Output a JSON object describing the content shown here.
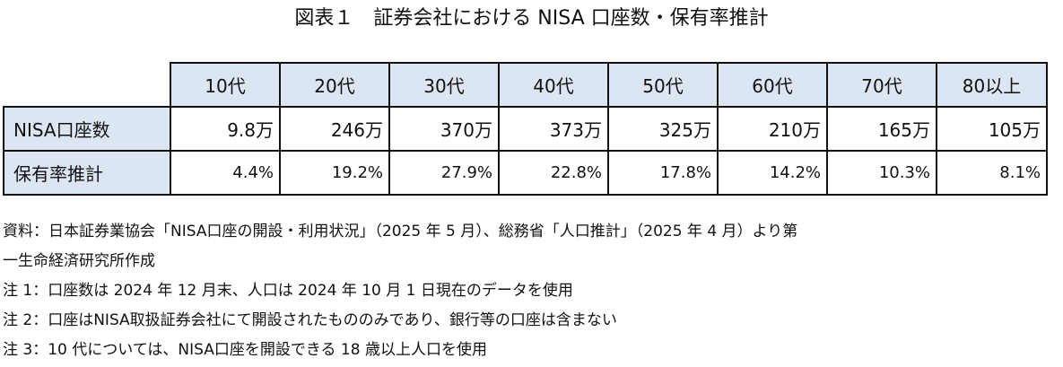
{
  "title": "図表１　証券会社における NISA 口座数・保有率推計",
  "table": {
    "columns": [
      "10代",
      "20代",
      "30代",
      "40代",
      "50代",
      "60代",
      "70代",
      "80以上"
    ],
    "rows": [
      {
        "label": "NISA口座数",
        "values": [
          "9.8万",
          "246万",
          "370万",
          "373万",
          "325万",
          "210万",
          "165万",
          "105万"
        ]
      },
      {
        "label": "保有率推計",
        "values": [
          "4.4%",
          "19.2%",
          "27.9%",
          "22.8%",
          "17.8%",
          "14.2%",
          "10.3%",
          "8.1%"
        ]
      }
    ]
  },
  "notes": {
    "source_line1": "資料：日本証券業協会「NISA口座の開設・利用状況」（2025 年 5 月）、総務省「人口推計」（2025 年 4 月）より第",
    "source_line2": "一生命経済研究所作成",
    "note1": "注 1：口座数は 2024 年 12 月末、人口は 2024 年 10 月 1 日現在のデータを使用",
    "note2": "注 2：口座はNISA取扱証券会社にて開設されたもののみであり、銀行等の口座は含まない",
    "note3": "注 3：10 代については、NISA口座を開設できる 18 歳以上人口を使用"
  }
}
